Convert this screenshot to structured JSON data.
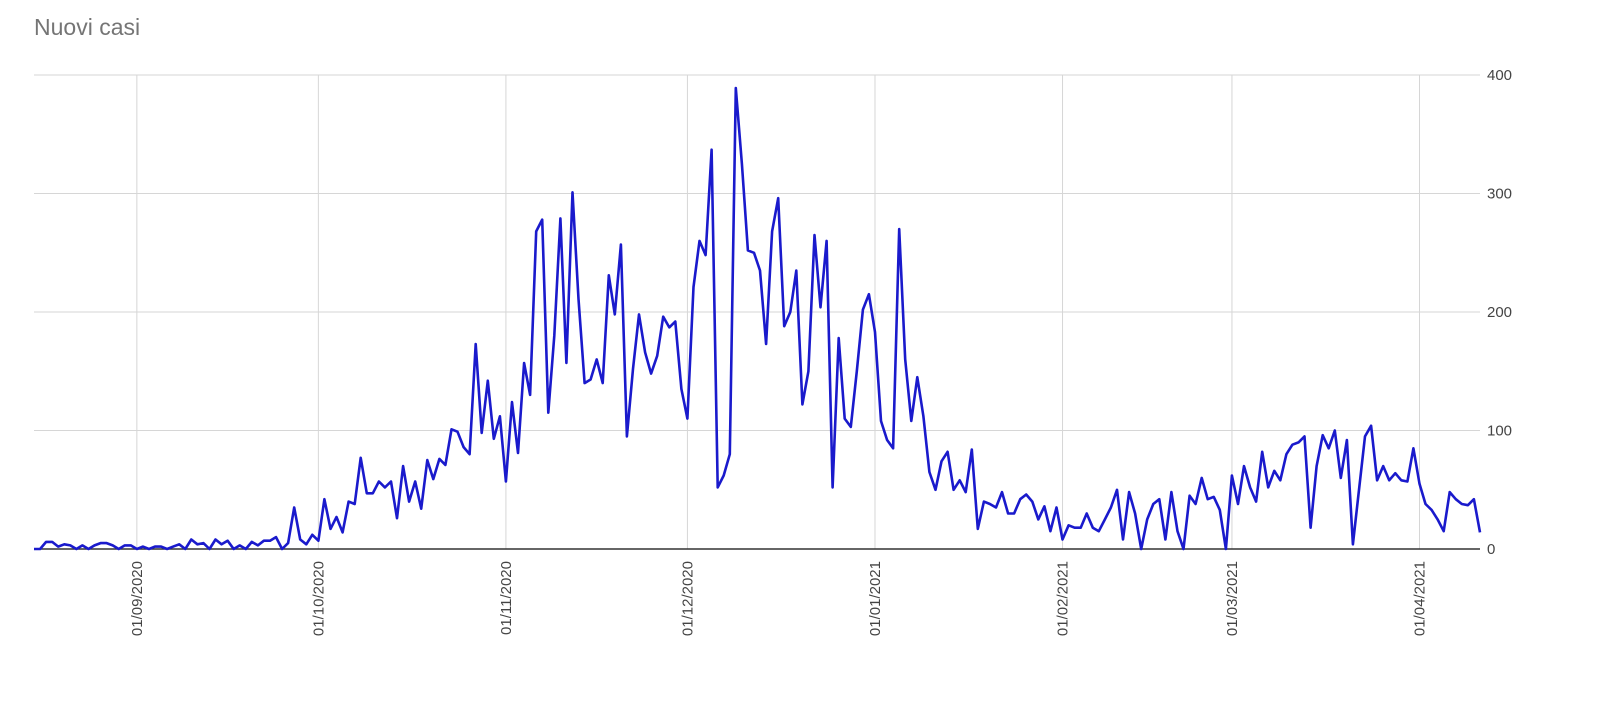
{
  "chart_data": {
    "type": "line",
    "title": "Nuovi casi",
    "xlabel": "",
    "ylabel": "",
    "x_start": "2020-08-15",
    "x_end": "2021-04-08",
    "ylim": [
      0,
      400
    ],
    "y_ticks": [
      0,
      100,
      200,
      300,
      400
    ],
    "y_axis_side": "right",
    "grid": true,
    "legend": "none",
    "x_ticks": [
      {
        "date": "2020-09-01",
        "label": "01/09/2020"
      },
      {
        "date": "2020-10-01",
        "label": "01/10/2020"
      },
      {
        "date": "2020-11-01",
        "label": "01/11/2020"
      },
      {
        "date": "2020-12-01",
        "label": "01/12/2020"
      },
      {
        "date": "2021-01-01",
        "label": "01/01/2021"
      },
      {
        "date": "2021-02-01",
        "label": "01/02/2021"
      },
      {
        "date": "2021-03-01",
        "label": "01/03/2021"
      },
      {
        "date": "2021-04-01",
        "label": "01/04/2021"
      }
    ],
    "series": [
      {
        "color": "#1a1acc",
        "points": [
          [
            "2020-08-15",
            0
          ],
          [
            "2020-08-16",
            0
          ],
          [
            "2020-08-17",
            6
          ],
          [
            "2020-08-18",
            6
          ],
          [
            "2020-08-19",
            2
          ],
          [
            "2020-08-20",
            4
          ],
          [
            "2020-08-21",
            3
          ],
          [
            "2020-08-22",
            0
          ],
          [
            "2020-08-23",
            3
          ],
          [
            "2020-08-24",
            0
          ],
          [
            "2020-08-25",
            3
          ],
          [
            "2020-08-26",
            5
          ],
          [
            "2020-08-27",
            5
          ],
          [
            "2020-08-28",
            3
          ],
          [
            "2020-08-29",
            0
          ],
          [
            "2020-08-30",
            3
          ],
          [
            "2020-08-31",
            3
          ],
          [
            "2020-09-01",
            0
          ],
          [
            "2020-09-02",
            2
          ],
          [
            "2020-09-03",
            0
          ],
          [
            "2020-09-04",
            2
          ],
          [
            "2020-09-05",
            2
          ],
          [
            "2020-09-06",
            0
          ],
          [
            "2020-09-07",
            2
          ],
          [
            "2020-09-08",
            4
          ],
          [
            "2020-09-09",
            0
          ],
          [
            "2020-09-10",
            8
          ],
          [
            "2020-09-11",
            4
          ],
          [
            "2020-09-12",
            5
          ],
          [
            "2020-09-13",
            0
          ],
          [
            "2020-09-14",
            8
          ],
          [
            "2020-09-15",
            4
          ],
          [
            "2020-09-16",
            7
          ],
          [
            "2020-09-17",
            0
          ],
          [
            "2020-09-18",
            3
          ],
          [
            "2020-09-19",
            0
          ],
          [
            "2020-09-20",
            6
          ],
          [
            "2020-09-21",
            3
          ],
          [
            "2020-09-22",
            7
          ],
          [
            "2020-09-23",
            7
          ],
          [
            "2020-09-24",
            10
          ],
          [
            "2020-09-25",
            0
          ],
          [
            "2020-09-26",
            5
          ],
          [
            "2020-09-27",
            35
          ],
          [
            "2020-09-28",
            8
          ],
          [
            "2020-09-29",
            4
          ],
          [
            "2020-09-30",
            12
          ],
          [
            "2020-10-01",
            7
          ],
          [
            "2020-10-02",
            42
          ],
          [
            "2020-10-03",
            17
          ],
          [
            "2020-10-04",
            27
          ],
          [
            "2020-10-05",
            14
          ],
          [
            "2020-10-06",
            40
          ],
          [
            "2020-10-07",
            38
          ],
          [
            "2020-10-08",
            77
          ],
          [
            "2020-10-09",
            47
          ],
          [
            "2020-10-10",
            47
          ],
          [
            "2020-10-11",
            57
          ],
          [
            "2020-10-12",
            52
          ],
          [
            "2020-10-13",
            57
          ],
          [
            "2020-10-14",
            26
          ],
          [
            "2020-10-15",
            70
          ],
          [
            "2020-10-16",
            40
          ],
          [
            "2020-10-17",
            57
          ],
          [
            "2020-10-18",
            34
          ],
          [
            "2020-10-19",
            75
          ],
          [
            "2020-10-20",
            59
          ],
          [
            "2020-10-21",
            76
          ],
          [
            "2020-10-22",
            71
          ],
          [
            "2020-10-23",
            101
          ],
          [
            "2020-10-24",
            99
          ],
          [
            "2020-10-25",
            86
          ],
          [
            "2020-10-26",
            80
          ],
          [
            "2020-10-27",
            173
          ],
          [
            "2020-10-28",
            98
          ],
          [
            "2020-10-29",
            142
          ],
          [
            "2020-10-30",
            93
          ],
          [
            "2020-10-31",
            112
          ],
          [
            "2020-11-01",
            57
          ],
          [
            "2020-11-02",
            124
          ],
          [
            "2020-11-03",
            81
          ],
          [
            "2020-11-04",
            157
          ],
          [
            "2020-11-05",
            130
          ],
          [
            "2020-11-06",
            268
          ],
          [
            "2020-11-07",
            278
          ],
          [
            "2020-11-08",
            115
          ],
          [
            "2020-11-09",
            180
          ],
          [
            "2020-11-10",
            279
          ],
          [
            "2020-11-11",
            157
          ],
          [
            "2020-11-12",
            301
          ],
          [
            "2020-11-13",
            211
          ],
          [
            "2020-11-14",
            140
          ],
          [
            "2020-11-15",
            143
          ],
          [
            "2020-11-16",
            160
          ],
          [
            "2020-11-17",
            140
          ],
          [
            "2020-11-18",
            231
          ],
          [
            "2020-11-19",
            198
          ],
          [
            "2020-11-20",
            257
          ],
          [
            "2020-11-21",
            95
          ],
          [
            "2020-11-22",
            152
          ],
          [
            "2020-11-23",
            198
          ],
          [
            "2020-11-24",
            166
          ],
          [
            "2020-11-25",
            148
          ],
          [
            "2020-11-26",
            163
          ],
          [
            "2020-11-27",
            196
          ],
          [
            "2020-11-28",
            187
          ],
          [
            "2020-11-29",
            192
          ],
          [
            "2020-11-30",
            135
          ],
          [
            "2020-12-01",
            110
          ],
          [
            "2020-12-02",
            221
          ],
          [
            "2020-12-03",
            260
          ],
          [
            "2020-12-04",
            248
          ],
          [
            "2020-12-05",
            337
          ],
          [
            "2020-12-06",
            52
          ],
          [
            "2020-12-07",
            62
          ],
          [
            "2020-12-08",
            80
          ],
          [
            "2020-12-09",
            389
          ],
          [
            "2020-12-10",
            325
          ],
          [
            "2020-12-11",
            252
          ],
          [
            "2020-12-12",
            250
          ],
          [
            "2020-12-13",
            235
          ],
          [
            "2020-12-14",
            173
          ],
          [
            "2020-12-15",
            268
          ],
          [
            "2020-12-16",
            296
          ],
          [
            "2020-12-17",
            188
          ],
          [
            "2020-12-18",
            200
          ],
          [
            "2020-12-19",
            235
          ],
          [
            "2020-12-20",
            122
          ],
          [
            "2020-12-21",
            150
          ],
          [
            "2020-12-22",
            265
          ],
          [
            "2020-12-23",
            204
          ],
          [
            "2020-12-24",
            260
          ],
          [
            "2020-12-25",
            52
          ],
          [
            "2020-12-26",
            178
          ],
          [
            "2020-12-27",
            110
          ],
          [
            "2020-12-28",
            103
          ],
          [
            "2020-12-29",
            150
          ],
          [
            "2020-12-30",
            202
          ],
          [
            "2020-12-31",
            215
          ],
          [
            "2021-01-01",
            183
          ],
          [
            "2021-01-02",
            108
          ],
          [
            "2021-01-03",
            92
          ],
          [
            "2021-01-04",
            85
          ],
          [
            "2021-01-05",
            270
          ],
          [
            "2021-01-06",
            160
          ],
          [
            "2021-01-07",
            108
          ],
          [
            "2021-01-08",
            145
          ],
          [
            "2021-01-09",
            112
          ],
          [
            "2021-01-10",
            65
          ],
          [
            "2021-01-11",
            50
          ],
          [
            "2021-01-12",
            74
          ],
          [
            "2021-01-13",
            82
          ],
          [
            "2021-01-14",
            50
          ],
          [
            "2021-01-15",
            58
          ],
          [
            "2021-01-16",
            48
          ],
          [
            "2021-01-17",
            84
          ],
          [
            "2021-01-18",
            17
          ],
          [
            "2021-01-19",
            40
          ],
          [
            "2021-01-20",
            38
          ],
          [
            "2021-01-21",
            35
          ],
          [
            "2021-01-22",
            48
          ],
          [
            "2021-01-23",
            30
          ],
          [
            "2021-01-24",
            30
          ],
          [
            "2021-01-25",
            42
          ],
          [
            "2021-01-26",
            46
          ],
          [
            "2021-01-27",
            40
          ],
          [
            "2021-01-28",
            25
          ],
          [
            "2021-01-29",
            36
          ],
          [
            "2021-01-30",
            15
          ],
          [
            "2021-01-31",
            35
          ],
          [
            "2021-02-01",
            8
          ],
          [
            "2021-02-02",
            20
          ],
          [
            "2021-02-03",
            18
          ],
          [
            "2021-02-04",
            18
          ],
          [
            "2021-02-05",
            30
          ],
          [
            "2021-02-06",
            18
          ],
          [
            "2021-02-07",
            15
          ],
          [
            "2021-02-08",
            25
          ],
          [
            "2021-02-09",
            35
          ],
          [
            "2021-02-10",
            50
          ],
          [
            "2021-02-11",
            8
          ],
          [
            "2021-02-12",
            48
          ],
          [
            "2021-02-13",
            30
          ],
          [
            "2021-02-14",
            0
          ],
          [
            "2021-02-15",
            25
          ],
          [
            "2021-02-16",
            38
          ],
          [
            "2021-02-17",
            42
          ],
          [
            "2021-02-18",
            8
          ],
          [
            "2021-02-19",
            48
          ],
          [
            "2021-02-20",
            15
          ],
          [
            "2021-02-21",
            0
          ],
          [
            "2021-02-22",
            45
          ],
          [
            "2021-02-23",
            38
          ],
          [
            "2021-02-24",
            60
          ],
          [
            "2021-02-25",
            42
          ],
          [
            "2021-02-26",
            44
          ],
          [
            "2021-02-27",
            33
          ],
          [
            "2021-02-28",
            0
          ],
          [
            "2021-03-01",
            62
          ],
          [
            "2021-03-02",
            38
          ],
          [
            "2021-03-03",
            70
          ],
          [
            "2021-03-04",
            52
          ],
          [
            "2021-03-05",
            40
          ],
          [
            "2021-03-06",
            82
          ],
          [
            "2021-03-07",
            52
          ],
          [
            "2021-03-08",
            66
          ],
          [
            "2021-03-09",
            58
          ],
          [
            "2021-03-10",
            80
          ],
          [
            "2021-03-11",
            88
          ],
          [
            "2021-03-12",
            90
          ],
          [
            "2021-03-13",
            95
          ],
          [
            "2021-03-14",
            18
          ],
          [
            "2021-03-15",
            70
          ],
          [
            "2021-03-16",
            96
          ],
          [
            "2021-03-17",
            85
          ],
          [
            "2021-03-18",
            100
          ],
          [
            "2021-03-19",
            60
          ],
          [
            "2021-03-20",
            92
          ],
          [
            "2021-03-21",
            4
          ],
          [
            "2021-03-22",
            50
          ],
          [
            "2021-03-23",
            95
          ],
          [
            "2021-03-24",
            104
          ],
          [
            "2021-03-25",
            58
          ],
          [
            "2021-03-26",
            70
          ],
          [
            "2021-03-27",
            58
          ],
          [
            "2021-03-28",
            64
          ],
          [
            "2021-03-29",
            58
          ],
          [
            "2021-03-30",
            57
          ],
          [
            "2021-03-31",
            85
          ],
          [
            "2021-04-01",
            55
          ],
          [
            "2021-04-02",
            38
          ],
          [
            "2021-04-03",
            33
          ],
          [
            "2021-04-04",
            25
          ],
          [
            "2021-04-05",
            15
          ],
          [
            "2021-04-06",
            48
          ],
          [
            "2021-04-07",
            42
          ],
          [
            "2021-04-08",
            38
          ],
          [
            "2021-04-09",
            37
          ],
          [
            "2021-04-10",
            42
          ],
          [
            "2021-04-11",
            14
          ]
        ]
      }
    ]
  }
}
